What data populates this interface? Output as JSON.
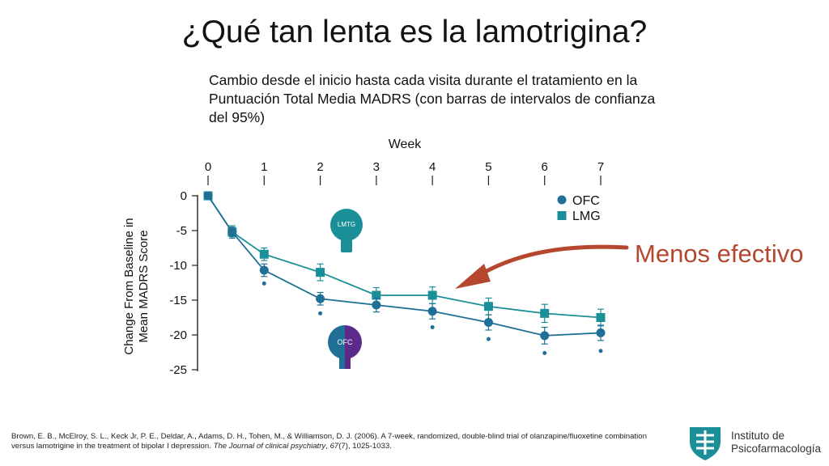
{
  "title": "¿Qué tan lenta es la lamotrigina?",
  "annotation": "Menos efectivo",
  "citation": {
    "text": "Brown, E. B., McElroy, S. L., Keck Jr, P. E., Deldar, A., Adams, D. H., Tohen, M., & Williamson, D. J. (2006). A 7-week, randomized, double-blind trial of olanzapine/fluoxetine combination versus lamotrigine in the treatment of bipolar I depression. ",
    "journal": "The Journal of clinical psychiatry",
    "comma_after_journal": ", ",
    "volume": "67",
    "rest": "(7), 1025-1033."
  },
  "institute": {
    "line1": "Instituto de",
    "line2": "Psicofarmacología"
  },
  "colors": {
    "ofc": "#1f6f97",
    "lmg": "#1a8f98",
    "annotation": "#b5472f",
    "ofc_purple": "#5b2a8a"
  },
  "chart_data": {
    "type": "line",
    "subtitle": "Cambio desde el inicio hasta cada visita durante el tratamiento en la Puntuación Total Media MADRS (con barras de intervalos de confianza del 95%)",
    "xlabel": "Week",
    "ylabel_line1": "Change From Baseline in",
    "ylabel_line2": "Mean MADRS Score",
    "x_ticks": [
      0,
      1,
      2,
      3,
      4,
      5,
      6,
      7
    ],
    "y_ticks": [
      0,
      -5,
      -10,
      -15,
      -20,
      -25
    ],
    "xlim": [
      0,
      7
    ],
    "ylim": [
      -25,
      0
    ],
    "x_axis_position": "top",
    "grid": false,
    "legend_position": "top-right",
    "series": [
      {
        "name": "OFC",
        "marker": "circle",
        "x": [
          0,
          0.43,
          1,
          2,
          3,
          4,
          5,
          6,
          7
        ],
        "y": [
          0,
          -5.2,
          -10.7,
          -14.8,
          -15.7,
          -16.6,
          -18.2,
          -20.1,
          -19.7
        ],
        "ci": [
          0,
          0.7,
          0.9,
          0.9,
          1.0,
          1.1,
          1.1,
          1.2,
          1.1
        ],
        "significance_marks_y": [
          null,
          null,
          -12.6,
          -16.9,
          null,
          -18.9,
          -20.6,
          -22.6,
          -22.3
        ]
      },
      {
        "name": "LMG",
        "marker": "square",
        "x": [
          0,
          0.43,
          1,
          2,
          3,
          4,
          5,
          6,
          7
        ],
        "y": [
          0,
          -5.2,
          -8.4,
          -11.0,
          -14.3,
          -14.3,
          -15.9,
          -16.9,
          -17.5
        ],
        "ci": [
          0,
          0.9,
          0.9,
          1.2,
          1.1,
          1.2,
          1.2,
          1.3,
          1.2
        ]
      }
    ],
    "icons": {
      "lmtg_label": "LMTG",
      "ofc_label": "OFC"
    }
  }
}
